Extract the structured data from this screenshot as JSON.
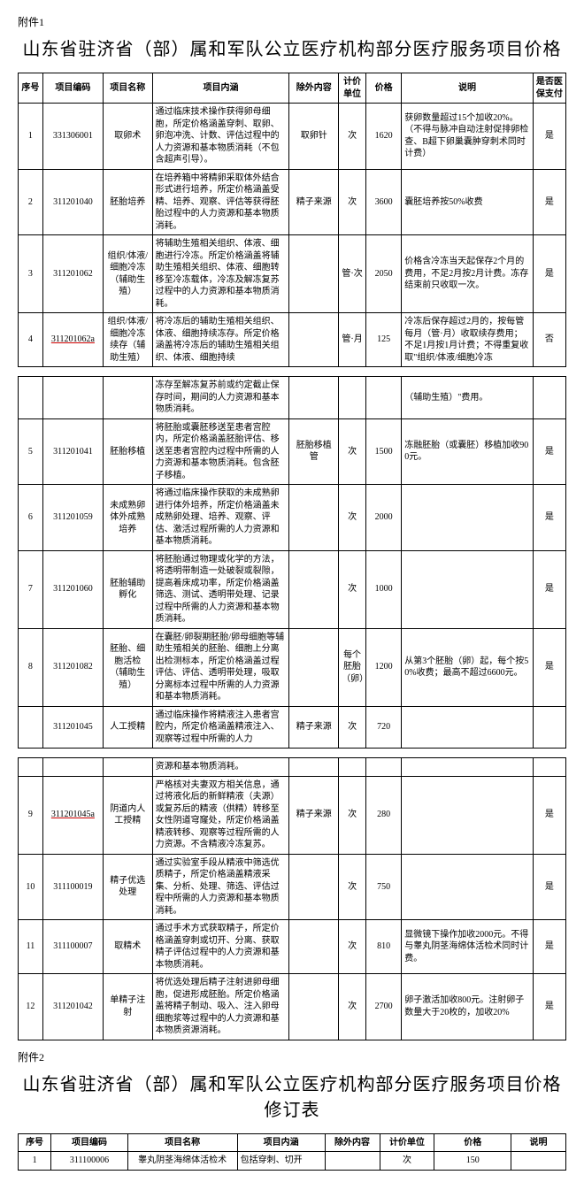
{
  "attach1_label": "附件1",
  "title1": "山东省驻济省（部）属和军队公立医疗机构部分医疗服务项目价格",
  "headers1": {
    "seq": "序号",
    "code": "项目编码",
    "name": "项目名称",
    "desc": "项目内涵",
    "excl": "除外内容",
    "unit": "计价单位",
    "price": "价格",
    "note": "说明",
    "med": "是否医保支付"
  },
  "rows_a": [
    {
      "seq": "1",
      "code": "331306001",
      "name": "取卵术",
      "desc": "通过临床技术操作获得卵母细胞，所定价格涵盖穿刺、取卵、卵泡冲洗、计数、评估过程中的人力资源和基本物质消耗（不包含超声引导）。",
      "excl": "取卵针",
      "unit": "次",
      "price": "1620",
      "note": "获卵数量超过15个加收20%。（不得与脉冲自动注射促排卵检查、B超下卵巢囊肿穿刺术同时计费）",
      "med": "是"
    },
    {
      "seq": "2",
      "code": "311201040",
      "name": "胚胎培养",
      "desc": "在培养箱中将精卵采取体外结合形式进行培养，所定价格涵盖受精、培养、观察、评估等获得胚胎过程中的人力资源和基本物质消耗。",
      "excl": "精子来源",
      "unit": "次",
      "price": "3600",
      "note": "囊胚培养按50%收费",
      "med": "是"
    },
    {
      "seq": "3",
      "code": "311201062",
      "name": "组织/体液/细胞冷冻（辅助生殖）",
      "desc": "将辅助生殖相关组织、体液、细胞进行冷冻。所定价格涵盖将辅助生殖相关组织、体液、细胞转移至冷冻载体，冷冻及解冻复苏过程中的人力资源和基本物质消耗。",
      "excl": "",
      "unit": "管·次",
      "price": "2050",
      "note": "价格含冷冻当天起保存2个月的费用，不足2月按2月计费。冻存结束前只收取一次。",
      "med": "是"
    },
    {
      "seq": "4",
      "code": "311201062a",
      "code_u": true,
      "name": "组织/体液/细胞冷冻续存（辅助生殖）",
      "desc": "将冷冻后的辅助生殖相关组织、体液、细胞持续冻存。所定价格涵盖将冷冻后的辅助生殖相关组织、体液、细胞持续",
      "excl": "",
      "unit": "管·月",
      "price": "125",
      "note": "冷冻后保存超过2月的，按每管每月（管·月）收取续存费用；不足1月按1月计费；不得重复收取\"组织/体液/细胞冷冻",
      "med": "否"
    }
  ],
  "rows_b": [
    {
      "seq": "",
      "code": "",
      "name": "",
      "desc": "冻存至解冻复苏前或约定截止保存时间，期间的人力资源和基本物质消耗。",
      "excl": "",
      "unit": "",
      "price": "",
      "note": "（辅助生殖）\"费用。",
      "med": ""
    },
    {
      "seq": "5",
      "code": "311201041",
      "name": "胚胎移植",
      "desc": "将胚胎或囊胚移送至患者宫腔内，所定价格涵盖胚胎评估、移送至患者宫腔内过程中所需的人力资源和基本物质消耗。包含胚子移植。",
      "excl": "胚胎移植管",
      "unit": "次",
      "price": "1500",
      "note": "冻融胚胎（或囊胚）移植加收900元。",
      "med": "是"
    },
    {
      "seq": "6",
      "code": "311201059",
      "name": "未成熟卵体外成熟培养",
      "desc": "将通过临床操作获取的未成熟卵进行体外培养，所定价格涵盖未成熟卵处理、培养、观察、评估、激活过程所需的人力资源和基本物质消耗。",
      "excl": "",
      "unit": "次",
      "price": "2000",
      "note": "",
      "med": "是"
    },
    {
      "seq": "7",
      "code": "311201060",
      "name": "胚胎辅助孵化",
      "desc": "将胚胎通过物理或化学的方法，将透明带制造一处破裂或裂隙，提高着床成功率，所定价格涵盖筛选、测试、透明带处理、记录过程中所需的人力资源和基本物质消耗。",
      "excl": "",
      "unit": "次",
      "price": "1000",
      "note": "",
      "med": "是"
    },
    {
      "seq": "8",
      "code": "311201082",
      "name": "胚胎、细胞活检（辅助生殖）",
      "desc": "在囊胚/卵裂期胚胎/卵母细胞等辅助生殖相关的胚胎、细胞上分离出检测标本，所定价格涵盖过程评估、评估、透明带处理，吸取分离标本过程中所需的人力资源和基本物质消耗。",
      "excl": "",
      "unit": "每个胚胎（卵）",
      "price": "1200",
      "note": "从第3个胚胎（卵）起，每个按50%收费；最高不超过6600元。",
      "med": "是"
    },
    {
      "seq": "",
      "code": "311201045",
      "name": "人工授精",
      "desc": "通过临床操作将精液注入患者宫腔内，所定价格涵盖精液注入、观察等过程中所需的人力",
      "excl": "精子来源",
      "unit": "次",
      "price": "720",
      "note": "",
      "med": ""
    }
  ],
  "rows_c": [
    {
      "seq": "",
      "code": "",
      "name": "",
      "desc": "资源和基本物质消耗。",
      "excl": "",
      "unit": "",
      "price": "",
      "note": "",
      "med": ""
    },
    {
      "seq": "9",
      "code": "311201045a",
      "code_u": true,
      "name": "阴道内人工授精",
      "desc": "严格核对夫妻双方相关信息，通过将液化后的新鲜精液（夫源）或复苏后的精液（供精）转移至女性阴道穹窿处，所定价格涵盖精液转移、观察等过程所需的人力资源。不含精液冷冻复苏。",
      "excl": "精子来源",
      "unit": "次",
      "price": "280",
      "note": "",
      "med": "是"
    },
    {
      "seq": "10",
      "code": "311100019",
      "name": "精子优选处理",
      "desc": "通过实验室手段从精液中筛选优质精子，所定价格涵盖精液采集、分析、处理、筛选、评估过程中所需的人力资源和基本物质消耗。",
      "excl": "",
      "unit": "次",
      "price": "750",
      "note": "",
      "med": "是"
    },
    {
      "seq": "11",
      "code": "311100007",
      "name": "取精术",
      "desc": "通过手术方式获取精子，所定价格涵盖穿刺或切开、分离、获取精子评估过程中的人力资源和基本物质消耗。",
      "excl": "",
      "unit": "次",
      "price": "810",
      "note": "显微镜下操作加收2000元。不得与睾丸阴茎海绵体活检术同时计费。",
      "med": "是"
    },
    {
      "seq": "12",
      "code": "311201042",
      "name": "单精子注射",
      "desc": "将优选处理后精子注射进卵母细胞，促进形成胚胎。所定价格涵盖将精子制动、吸入、注入卵母细胞浆等过程中的人力资源和基本物质资源消耗。",
      "excl": "",
      "unit": "次",
      "price": "2700",
      "note": "卵子激活加收800元。注射卵子数量大于20枚的，加收20%",
      "med": "是"
    }
  ],
  "attach2_label": "附件2",
  "title2": "山东省驻济省（部）属和军队公立医疗机构部分医疗服务项目价格修订表",
  "headers2": {
    "seq": "序号",
    "code": "项目编码",
    "name": "项目名称",
    "desc": "项目内涵",
    "excl": "除外内容",
    "unit": "计价单位",
    "price": "价格",
    "note": "说明"
  },
  "rows2": [
    {
      "seq": "1",
      "code": "311100006",
      "name": "睾丸阴茎海绵体活检术",
      "desc": "包括穿刺、切开",
      "excl": "",
      "unit": "次",
      "price": "150",
      "note": ""
    }
  ]
}
